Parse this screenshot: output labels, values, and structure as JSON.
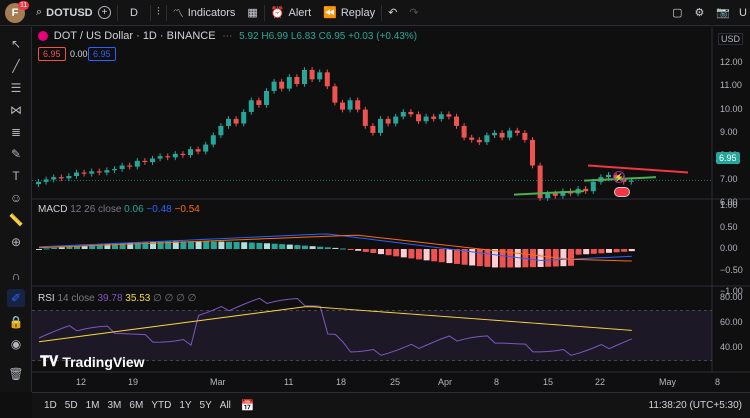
{
  "header": {
    "symbol": "DOTUSD",
    "interval": "D",
    "indicators_label": "Indicators",
    "alert_label": "Alert",
    "replay_label": "Replay",
    "avatar_letter": "F",
    "notification_count": "11",
    "edge_text": "U"
  },
  "legend": {
    "title": "DOT / US Dollar · 1D · BINANCE",
    "ohlc_partial": "5.92",
    "high": "H6.99",
    "low": "L6.83",
    "close": "C6.95",
    "change": "+0.03 (+0.43%)",
    "bid": "6.95",
    "spread": "0.00",
    "ask": "6.95"
  },
  "price_axis": {
    "currency": "USD",
    "ticks": [
      "12.00",
      "11.00",
      "10.00",
      "9.00",
      "8.00",
      "7.00",
      "6.00"
    ],
    "current_price": "6.95"
  },
  "macd": {
    "label": "MACD",
    "params": "12 26 close",
    "value1": "0.06",
    "value2": "−0.48",
    "value3": "−0.54",
    "ticks": [
      "1.00",
      "0.50",
      "0.00",
      "−0.50",
      "−1.00"
    ]
  },
  "rsi": {
    "label": "RSI",
    "params": "14 close",
    "value1": "39.78",
    "value2": "35.53",
    "empty_values": "∅ ∅ ∅ ∅",
    "ticks": [
      "80.00",
      "60.00",
      "40.00"
    ]
  },
  "time_axis": {
    "labels": [
      "12",
      "19",
      "Mar",
      "11",
      "18",
      "25",
      "Apr",
      "8",
      "15",
      "22",
      "May",
      "8"
    ]
  },
  "watermark": "TradingView",
  "bottom": {
    "ranges": [
      "1D",
      "5D",
      "1M",
      "3M",
      "6M",
      "YTD",
      "1Y",
      "5Y",
      "All"
    ],
    "clock": "11:38:20 (UTC+5:30)"
  },
  "colors": {
    "up": "#26a69a",
    "down": "#ef5350",
    "resistance_line": "#f23645",
    "support_line": "#4caf50",
    "macd_line": "#2962ff",
    "signal_line": "#ff6d00",
    "rsi_line": "#7e57c2",
    "rsi_ma": "#fdd835"
  }
}
